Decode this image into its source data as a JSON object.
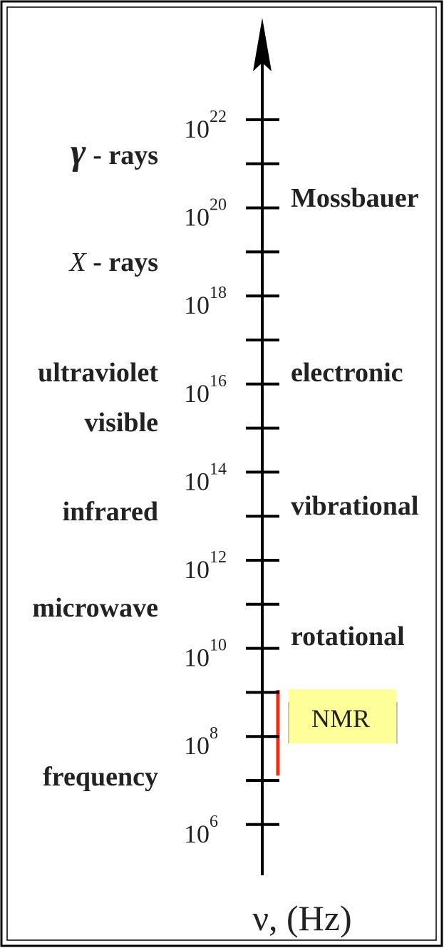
{
  "axis": {
    "label": "ν, (Hz)",
    "ticks": [
      {
        "base": "10",
        "exponent": "22"
      },
      {
        "base": "10",
        "exponent": "20"
      },
      {
        "base": "10",
        "exponent": "18"
      },
      {
        "base": "10",
        "exponent": "16"
      },
      {
        "base": "10",
        "exponent": "14"
      },
      {
        "base": "10",
        "exponent": "12"
      },
      {
        "base": "10",
        "exponent": "10"
      },
      {
        "base": "10",
        "exponent": "8"
      },
      {
        "base": "10",
        "exponent": "6"
      }
    ]
  },
  "regions": [
    {
      "symbol": "γ",
      "label": " - rays"
    },
    {
      "symbol": "X",
      "label": " - rays"
    },
    {
      "label": "ultraviolet"
    },
    {
      "label": "visible"
    },
    {
      "label": "infrared"
    },
    {
      "label": "microwave"
    },
    {
      "label": "frequency"
    }
  ],
  "transitions": [
    {
      "label": "Mossbauer"
    },
    {
      "label": "electronic"
    },
    {
      "label": "vibrational"
    },
    {
      "label": "rotational"
    }
  ],
  "highlight": {
    "label": "NMR"
  }
}
